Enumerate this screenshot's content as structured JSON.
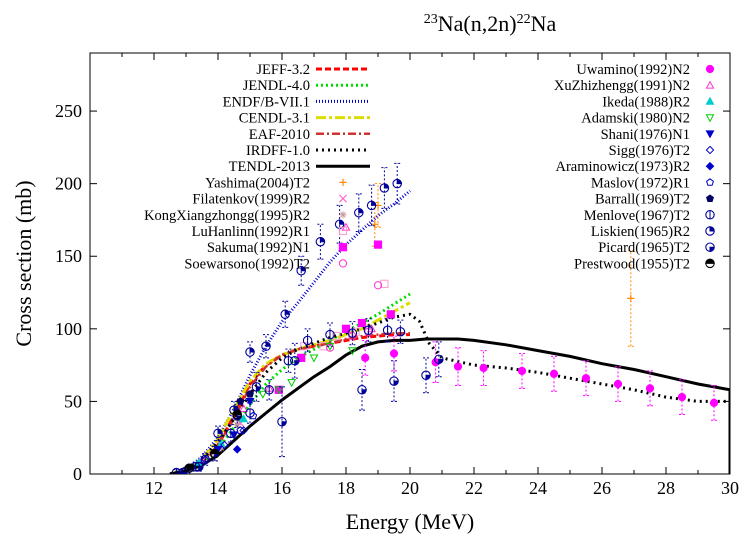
{
  "chart_data": {
    "type": "scatter",
    "title": {
      "pre_sup": "23",
      "pre": "Na(n,2n)",
      "post_sup": "22",
      "post": "Na"
    },
    "xlabel": "Energy (MeV)",
    "ylabel": "Cross section (mb)",
    "xlim": [
      10,
      30
    ],
    "ylim": [
      0,
      290
    ],
    "xticks": [
      12,
      14,
      16,
      18,
      20,
      22,
      24,
      26,
      28,
      30
    ],
    "yticks": [
      0,
      50,
      100,
      150,
      200,
      250
    ],
    "grid": false,
    "evaluations": [
      {
        "name": "JEFF-3.2",
        "color": "#ff0000",
        "dash": "6,3",
        "width": 3,
        "points": [
          [
            12.5,
            0
          ],
          [
            13,
            2
          ],
          [
            13.5,
            8
          ],
          [
            14,
            20
          ],
          [
            14.5,
            40
          ],
          [
            15,
            62
          ],
          [
            15.5,
            75
          ],
          [
            16,
            82
          ],
          [
            16.5,
            86
          ],
          [
            17,
            88
          ],
          [
            17.5,
            90
          ],
          [
            18,
            92
          ],
          [
            18.5,
            94
          ],
          [
            19,
            95
          ],
          [
            19.5,
            96
          ],
          [
            20,
            96
          ]
        ]
      },
      {
        "name": "JENDL-4.0",
        "color": "#00dd00",
        "dash": "2,3",
        "width": 3,
        "points": [
          [
            12.5,
            0
          ],
          [
            13,
            2
          ],
          [
            13.5,
            7
          ],
          [
            14,
            17
          ],
          [
            14.5,
            32
          ],
          [
            15,
            48
          ],
          [
            15.5,
            62
          ],
          [
            16,
            72
          ],
          [
            16.5,
            80
          ],
          [
            17,
            86
          ],
          [
            17.5,
            92
          ],
          [
            18,
            98
          ],
          [
            18.5,
            104
          ],
          [
            19,
            110
          ],
          [
            19.5,
            117
          ],
          [
            20,
            124
          ]
        ]
      },
      {
        "name": "ENDF/B-VII.1",
        "color": "#0000cc",
        "dash": "1,2",
        "width": 3,
        "points": [
          [
            12.5,
            0
          ],
          [
            13,
            3
          ],
          [
            13.5,
            12
          ],
          [
            14,
            25
          ],
          [
            14.5,
            45
          ],
          [
            15,
            68
          ],
          [
            15.5,
            88
          ],
          [
            16,
            105
          ],
          [
            16.5,
            118
          ],
          [
            17,
            132
          ],
          [
            17.5,
            146
          ],
          [
            18,
            158
          ],
          [
            18.5,
            168
          ],
          [
            19,
            178
          ],
          [
            19.5,
            186
          ],
          [
            20,
            195
          ]
        ]
      },
      {
        "name": "CENDL-3.1",
        "color": "#dddd00",
        "dash": "10,3,3,3",
        "width": 3,
        "points": [
          [
            12.5,
            0
          ],
          [
            13,
            3
          ],
          [
            13.5,
            10
          ],
          [
            14,
            24
          ],
          [
            14.5,
            45
          ],
          [
            15,
            64
          ],
          [
            15.5,
            76
          ],
          [
            16,
            82
          ],
          [
            16.5,
            86
          ],
          [
            17,
            89
          ],
          [
            17.5,
            92
          ],
          [
            18,
            96
          ],
          [
            18.5,
            100
          ],
          [
            19,
            106
          ],
          [
            19.5,
            112
          ],
          [
            20,
            118
          ]
        ]
      },
      {
        "name": "EAF-2010",
        "color": "#cc3333",
        "dash": "8,3,2,3",
        "width": 2.5,
        "points": [
          [
            12.5,
            0
          ],
          [
            13,
            2
          ],
          [
            13.5,
            8
          ],
          [
            14,
            20
          ],
          [
            14.5,
            38
          ],
          [
            15,
            60
          ],
          [
            15.5,
            74
          ],
          [
            16,
            82
          ],
          [
            16.5,
            86
          ],
          [
            17,
            88
          ],
          [
            17.5,
            90
          ],
          [
            18,
            93
          ],
          [
            18.5,
            95
          ],
          [
            19,
            96
          ],
          [
            19.5,
            97
          ],
          [
            20,
            97
          ]
        ]
      },
      {
        "name": "IRDFF-1.0",
        "color": "#000000",
        "dash": "2,4",
        "width": 3,
        "points": [
          [
            12.5,
            0
          ],
          [
            13,
            3
          ],
          [
            13.5,
            10
          ],
          [
            14,
            22
          ],
          [
            14.5,
            38
          ],
          [
            15,
            55
          ],
          [
            15.5,
            70
          ],
          [
            16,
            80
          ],
          [
            16.5,
            86
          ],
          [
            17,
            90
          ],
          [
            17.5,
            94
          ],
          [
            18,
            97
          ],
          [
            18.5,
            100
          ],
          [
            19,
            104
          ],
          [
            19.5,
            108
          ],
          [
            20,
            110
          ],
          [
            20.3,
            105
          ],
          [
            20.6,
            90
          ],
          [
            21,
            80
          ],
          [
            22,
            75
          ],
          [
            23,
            73
          ],
          [
            24,
            70
          ],
          [
            25,
            66
          ],
          [
            26,
            62
          ],
          [
            27,
            58
          ],
          [
            28,
            53
          ],
          [
            29,
            50
          ],
          [
            30,
            50
          ]
        ]
      },
      {
        "name": "TENDL-2013",
        "color": "#000000",
        "dash": "",
        "width": 3,
        "points": [
          [
            12.5,
            0
          ],
          [
            13,
            2
          ],
          [
            13.5,
            6
          ],
          [
            14,
            13
          ],
          [
            14.5,
            23
          ],
          [
            15,
            33
          ],
          [
            15.5,
            42
          ],
          [
            16,
            51
          ],
          [
            16.5,
            59
          ],
          [
            17,
            67
          ],
          [
            17.5,
            74
          ],
          [
            18,
            82
          ],
          [
            18.5,
            88
          ],
          [
            19,
            91
          ],
          [
            19.5,
            92
          ],
          [
            20,
            92
          ],
          [
            20.5,
            93
          ],
          [
            21,
            93
          ],
          [
            21.5,
            93
          ],
          [
            22,
            92
          ],
          [
            23,
            89
          ],
          [
            24,
            85
          ],
          [
            25,
            81
          ],
          [
            26,
            76
          ],
          [
            27,
            72
          ],
          [
            28,
            67
          ],
          [
            29,
            62
          ],
          [
            30,
            58
          ],
          [
            30,
            0
          ]
        ]
      }
    ],
    "experiments": [
      {
        "name": "Yashima(2004)T2",
        "color": "#ff8800",
        "marker": "plus",
        "points": [
          [
            18.9,
            172
          ],
          [
            19.0,
            185
          ],
          [
            26.9,
            121
          ]
        ],
        "yerr": [
          15,
          15,
          33
        ]
      },
      {
        "name": "Filatenkov(1999)R2",
        "color": "#ff66cc",
        "marker": "x",
        "points": [
          [
            13.5,
            9
          ],
          [
            14.1,
            20
          ],
          [
            14.7,
            35
          ]
        ]
      },
      {
        "name": "KongXiangzhongg(1995)R2",
        "color": "#cc9999",
        "marker": "star",
        "points": [
          [
            13.8,
            14
          ],
          [
            14.1,
            18
          ],
          [
            14.6,
            34
          ]
        ]
      },
      {
        "name": "LuHanlinn(1992)R1",
        "color": "#ff99cc",
        "marker": "box",
        "points": [
          [
            16.7,
            88
          ],
          [
            17.3,
            88
          ],
          [
            17.7,
            95
          ],
          [
            18.3,
            98
          ],
          [
            19.2,
            131
          ]
        ]
      },
      {
        "name": "Sakuma(1992)N1",
        "color": "#ff00ff",
        "marker": "fbox",
        "points": [
          [
            15.9,
            58
          ],
          [
            16.6,
            80
          ],
          [
            18.0,
            100
          ],
          [
            18.5,
            104
          ],
          [
            19.0,
            158
          ],
          [
            19.4,
            110
          ]
        ]
      },
      {
        "name": "Soewarsono(1992)T2",
        "color": "#ff33cc",
        "marker": "circle",
        "points": [
          [
            17.5,
            87
          ],
          [
            18.2,
            95
          ],
          [
            18.7,
            98
          ],
          [
            19.0,
            130
          ]
        ]
      },
      {
        "name": "Uwamino(1992)N2",
        "color": "#ff00ff",
        "marker": "fcircle",
        "points": [
          [
            18.6,
            80
          ],
          [
            19.5,
            83
          ],
          [
            20.8,
            77
          ],
          [
            21.5,
            74
          ],
          [
            22.3,
            73
          ],
          [
            23.5,
            71
          ],
          [
            24.5,
            69
          ],
          [
            25.5,
            66
          ],
          [
            26.5,
            62
          ],
          [
            27.5,
            59
          ],
          [
            28.5,
            53
          ],
          [
            29.5,
            49
          ]
        ],
        "yerr": [
          12,
          12,
          14,
          13,
          12,
          12,
          12,
          12,
          12,
          12,
          12,
          12
        ]
      },
      {
        "name": "XuZhizhengg(1991)N2",
        "color": "#ff33cc",
        "marker": "triangle",
        "points": [
          [
            14.8,
            45
          ],
          [
            15.6,
            59
          ],
          [
            18.0,
            170
          ],
          [
            18.8,
            100
          ]
        ]
      },
      {
        "name": "Ikeda(1988)R2",
        "color": "#00cccc",
        "marker": "ftriangle",
        "points": [
          [
            13.4,
            8
          ],
          [
            14.1,
            21
          ],
          [
            14.8,
            38
          ]
        ]
      },
      {
        "name": "Adamski(1980)N2",
        "color": "#00cc00",
        "marker": "itriangle",
        "points": [
          [
            15.4,
            55
          ],
          [
            15.9,
            58
          ],
          [
            16.3,
            63
          ],
          [
            17.0,
            80
          ],
          [
            17.5,
            88
          ],
          [
            18.2,
            85
          ]
        ]
      },
      {
        "name": "Shani(1976)N1",
        "color": "#0000cc",
        "marker": "fitriangle",
        "points": [
          [
            14.0,
            17
          ],
          [
            14.5,
            27
          ],
          [
            15.0,
            50
          ]
        ]
      },
      {
        "name": "Sigg(1976)T2",
        "color": "#0000cc",
        "marker": "diamond",
        "points": [
          [
            13.6,
            10
          ],
          [
            14.2,
            20
          ],
          [
            14.8,
            30
          ]
        ]
      },
      {
        "name": "Araminowicz(1973)R2",
        "color": "#0000cc",
        "marker": "fdiamond",
        "points": [
          [
            14.6,
            17
          ]
        ]
      },
      {
        "name": "Maslov(1972)R1",
        "color": "#0000cc",
        "marker": "pentagon",
        "points": [
          [
            14.7,
            30
          ],
          [
            15.1,
            40
          ]
        ]
      },
      {
        "name": "Barrall(1969)T2",
        "color": "#000066",
        "marker": "fpentagon",
        "points": [
          [
            14.7,
            50
          ],
          [
            15.0,
            55
          ]
        ]
      },
      {
        "name": "Menlove(1967)T2",
        "color": "#000099",
        "marker": "ocircle",
        "points": [
          [
            12.7,
            1
          ],
          [
            13.0,
            2
          ],
          [
            13.3,
            5
          ],
          [
            13.6,
            10
          ],
          [
            13.9,
            14
          ],
          [
            14.4,
            28
          ],
          [
            15.0,
            42
          ],
          [
            15.6,
            58
          ],
          [
            16.2,
            78
          ],
          [
            16.8,
            92
          ],
          [
            17.5,
            96
          ],
          [
            18.2,
            97
          ],
          [
            18.7,
            99
          ],
          [
            19.3,
            99
          ],
          [
            19.7,
            98
          ]
        ],
        "yerr": [
          2,
          2,
          3,
          4,
          5,
          6,
          7,
          7,
          8,
          8,
          8,
          8,
          8,
          8,
          8
        ]
      },
      {
        "name": "Liskien(1965)R2",
        "color": "#000099",
        "marker": "ocircle2",
        "points": [
          [
            14.0,
            28
          ],
          [
            14.5,
            44
          ],
          [
            15.0,
            84
          ],
          [
            15.5,
            88
          ],
          [
            16.1,
            110
          ],
          [
            16.6,
            140
          ],
          [
            17.2,
            160
          ],
          [
            17.8,
            172
          ],
          [
            18.4,
            180
          ],
          [
            18.8,
            185
          ],
          [
            19.2,
            197
          ],
          [
            19.6,
            200
          ]
        ],
        "yerr": [
          5,
          6,
          7,
          8,
          9,
          10,
          12,
          13,
          13,
          14,
          14,
          14
        ]
      },
      {
        "name": "Picard(1965)T2",
        "color": "#000099",
        "marker": "ocircle3",
        "points": [
          [
            12.9,
            1
          ],
          [
            13.4,
            5
          ],
          [
            13.9,
            14
          ],
          [
            14.6,
            40
          ],
          [
            15.2,
            60
          ],
          [
            16.0,
            36
          ],
          [
            16.4,
            78
          ],
          [
            18.5,
            58
          ],
          [
            19.5,
            64
          ],
          [
            20.5,
            68
          ],
          [
            20.9,
            79
          ]
        ],
        "yerr": [
          2,
          3,
          5,
          8,
          10,
          24,
          12,
          14,
          14,
          12,
          12
        ]
      },
      {
        "name": "Prestwood(1955)T2",
        "color": "#000000",
        "marker": "hcircle",
        "points": [
          [
            13.1,
            4
          ],
          [
            13.9,
            14
          ],
          [
            14.6,
            41
          ]
        ]
      }
    ]
  }
}
